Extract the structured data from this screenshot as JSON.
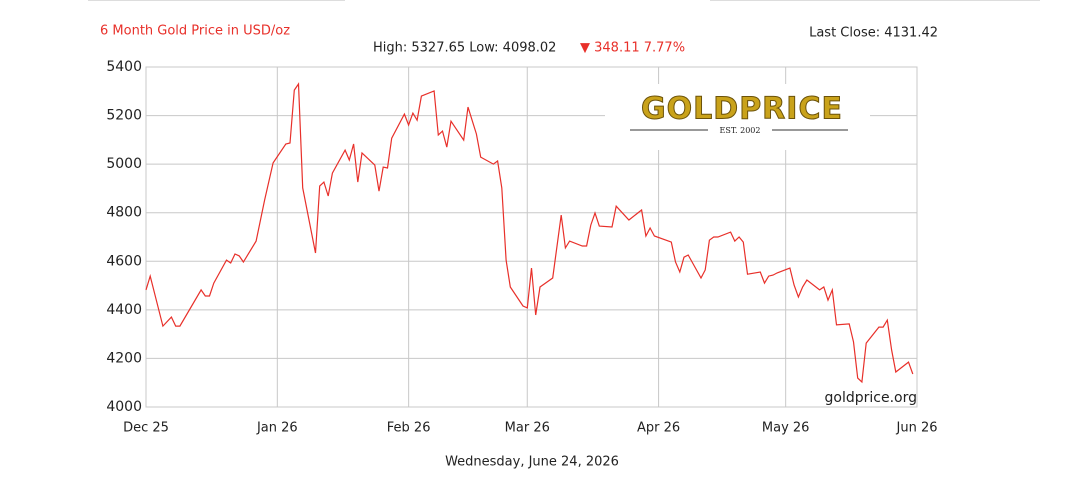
{
  "chart_data": {
    "type": "line",
    "title": "6 Month Gold Price in USD/oz",
    "last_close": "Last Close: 4131.42",
    "high_low": "High: 5327.65 Low: 4098.02",
    "change": "▼ 348.11 7.77%",
    "watermark": "goldprice.org",
    "logo": {
      "name": "GOLDPRICE",
      "est": "EST. 2002"
    },
    "date": "Wednesday, June 24, 2026",
    "color": "#e8302a",
    "title_color": "#e8302a",
    "grid": true,
    "xlim": [
      0,
      182
    ],
    "xticks": [
      {
        "value": 0,
        "label": "Dec 25"
      },
      {
        "value": 31,
        "label": "Jan 26"
      },
      {
        "value": 62,
        "label": "Feb 26"
      },
      {
        "value": 90,
        "label": "Mar 26"
      },
      {
        "value": 121,
        "label": "Apr 26"
      },
      {
        "value": 151,
        "label": "May 26"
      },
      {
        "value": 182,
        "label": "Jun 26"
      }
    ],
    "ylim": [
      4000,
      5400
    ],
    "yticks": [
      4000,
      4200,
      4400,
      4600,
      4800,
      5000,
      5200,
      5400
    ],
    "x": [
      0,
      1,
      4,
      6,
      7,
      8,
      13,
      14,
      15,
      16,
      19,
      20,
      21,
      22,
      23,
      26,
      28,
      30,
      33,
      34,
      35,
      36,
      37,
      40,
      41,
      42,
      43,
      44,
      47,
      48,
      49,
      50,
      51,
      54,
      55,
      56,
      57,
      58,
      61,
      62,
      63,
      64,
      65,
      68,
      69,
      70,
      71,
      72,
      75,
      76,
      78,
      79,
      82,
      83,
      84,
      85,
      86,
      89,
      90,
      91,
      92,
      93,
      96,
      98,
      99,
      100,
      103,
      104,
      105,
      106,
      107,
      110,
      111,
      114,
      117,
      118,
      119,
      120,
      124,
      125,
      126,
      127,
      128,
      131,
      132,
      133,
      134,
      135,
      138,
      139,
      140,
      141,
      142,
      145,
      146,
      147,
      148,
      149,
      152,
      153,
      154,
      155,
      156,
      159,
      160,
      161,
      162,
      163,
      166,
      167,
      168,
      169,
      170,
      173,
      174,
      175,
      176,
      177,
      180,
      181
    ],
    "values": [
      4482,
      4539,
      4333,
      4370,
      4333,
      4333,
      4482,
      4457,
      4457,
      4510,
      4605,
      4593,
      4630,
      4622,
      4597,
      4683,
      4852,
      5005,
      5083,
      5087,
      5305,
      5330,
      4902,
      4634,
      4910,
      4926,
      4869,
      4963,
      5058,
      5017,
      5083,
      4926,
      5046,
      4996,
      4889,
      4988,
      4984,
      5107,
      5206,
      5161,
      5210,
      5181,
      5280,
      5301,
      5120,
      5136,
      5070,
      5177,
      5099,
      5235,
      5124,
      5029,
      5000,
      5013,
      4902,
      4605,
      4494,
      4416,
      4408,
      4572,
      4379,
      4494,
      4531,
      4790,
      4655,
      4683,
      4663,
      4663,
      4749,
      4799,
      4745,
      4741,
      4827,
      4770,
      4811,
      4704,
      4737,
      4704,
      4679,
      4597,
      4556,
      4617,
      4626,
      4531,
      4564,
      4687,
      4700,
      4700,
      4720,
      4683,
      4700,
      4679,
      4547,
      4556,
      4510,
      4539,
      4543,
      4552,
      4572,
      4502,
      4453,
      4494,
      4523,
      4482,
      4494,
      4440,
      4482,
      4338,
      4342,
      4268,
      4119,
      4103,
      4263,
      4329,
      4329,
      4358,
      4235,
      4144,
      4185,
      4136
    ]
  }
}
